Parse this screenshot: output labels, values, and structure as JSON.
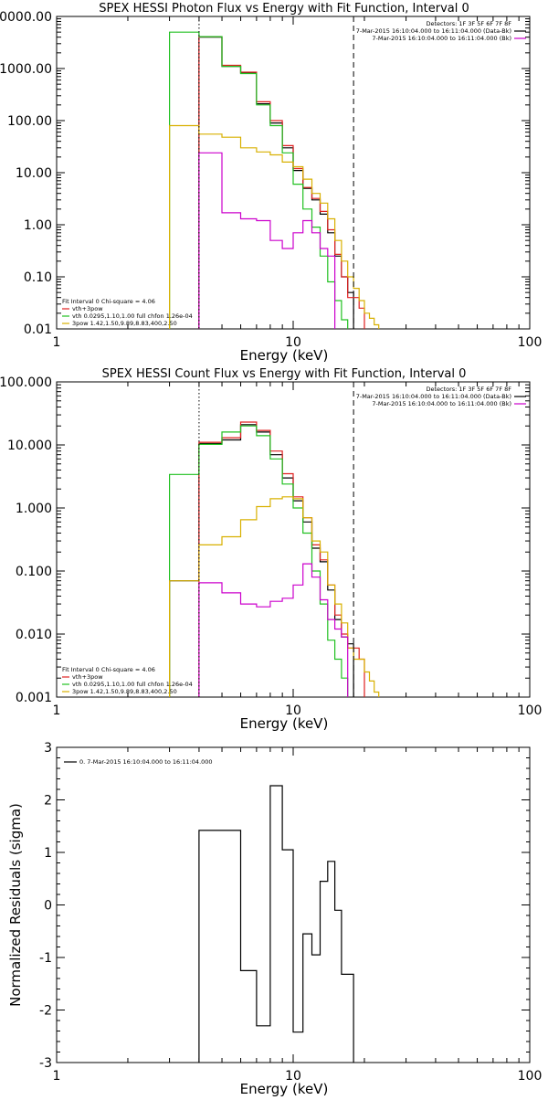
{
  "chart_data": [
    {
      "type": "line",
      "title": "SPEX HESSI Photon Flux vs Energy with Fit Function, Interval 0",
      "xlabel": "Energy (keV)",
      "ylabel": "",
      "xscale": "log",
      "yscale": "log",
      "xlim": [
        1,
        100
      ],
      "ylim": [
        0.01,
        10000
      ],
      "xticks": [
        {
          "v": 1,
          "label": "1"
        },
        {
          "v": 10,
          "label": "10"
        },
        {
          "v": 100,
          "label": "100"
        }
      ],
      "yticks": [
        {
          "v": 0.01,
          "label": "0.01"
        },
        {
          "v": 0.1,
          "label": "0.10"
        },
        {
          "v": 1,
          "label": "1.00"
        },
        {
          "v": 10,
          "label": "10.00"
        },
        {
          "v": 100,
          "label": "100.00"
        },
        {
          "v": 1000,
          "label": "1000.00"
        },
        {
          "v": 10000,
          "label": "10000.00"
        }
      ],
      "vlines": [
        {
          "x": 4.0,
          "style": "dotted",
          "color": "#000000"
        },
        {
          "x": 18.0,
          "style": "dashed",
          "color": "#000000"
        }
      ],
      "legend_top_right": [
        {
          "text": "Detectors: 1F 3F 5F 6F 7F 8F",
          "color": ""
        },
        {
          "text": "7-Mar-2015 16:10:04.000 to 16:11:04.000 (Data-Bk)",
          "color": "#000000"
        },
        {
          "text": "7-Mar-2015 16:10:04.000 to 16:11:04.000 (Bk)",
          "color": "#cc00cc"
        }
      ],
      "legend_bottom_left": [
        {
          "text": "Fit Interval 0   Chi-square = 4.06",
          "color": ""
        },
        {
          "text": "vth+3pow",
          "color": "#e02020"
        },
        {
          "text": "vth 0.0295,1.10,1.00  full chfon 1.26e-04",
          "color": "#20c020"
        },
        {
          "text": "3pow 1.42,1.50,9.89,8.83,400,2.50",
          "color": "#d8b000"
        }
      ],
      "series": [
        {
          "color": "#000000",
          "edges": [
            4.0,
            5.0,
            6.0,
            7.0,
            8.0,
            9.0,
            10.0,
            11.0,
            12.0,
            13.0,
            14.0,
            15.0,
            16.0,
            17.0,
            18.0
          ],
          "values": [
            4000,
            1100,
            820,
            210,
            90,
            30,
            11,
            5,
            3,
            1.6,
            0.7,
            0.25,
            0.1,
            0.05
          ]
        },
        {
          "color": "#e02020",
          "edges": [
            4.0,
            5.0,
            6.0,
            7.0,
            8.0,
            9.0,
            10.0,
            11.0,
            12.0,
            13.0,
            14.0,
            15.0,
            16.0,
            17.0,
            18.0,
            19.0,
            20.0
          ],
          "values": [
            4100,
            1150,
            850,
            230,
            100,
            33,
            12,
            5.2,
            3.2,
            1.8,
            0.8,
            0.27,
            0.1,
            0.04,
            0.04,
            0.025
          ]
        },
        {
          "color": "#20c020",
          "edges": [
            3.0,
            4.0,
            5.0,
            6.0,
            7.0,
            8.0,
            9.0,
            10.0,
            11.0,
            12.0,
            13.0,
            14.0,
            15.0,
            16.0,
            17.0
          ],
          "values": [
            5000,
            4100,
            1100,
            800,
            200,
            80,
            24,
            6,
            2,
            0.9,
            0.25,
            0.08,
            0.035,
            0.015
          ]
        },
        {
          "color": "#d8b000",
          "edges": [
            3.0,
            4.0,
            5.0,
            6.0,
            7.0,
            8.0,
            9.0,
            10.0,
            11.0,
            12.0,
            13.0,
            14.0,
            15.0,
            16.0,
            17.0,
            18.0,
            19.0,
            20.0,
            21.0,
            22.0,
            23.0
          ],
          "values": [
            80,
            55,
            48,
            30,
            25,
            22,
            16,
            13,
            7.5,
            4,
            2.6,
            1.3,
            0.5,
            0.2,
            0.1,
            0.06,
            0.035,
            0.02,
            0.016,
            0.012
          ]
        },
        {
          "color": "#cc00cc",
          "edges": [
            4.0,
            5.0,
            6.0,
            7.0,
            8.0,
            9.0,
            10.0,
            11.0,
            12.0,
            13.0,
            14.0,
            15.0
          ],
          "values": [
            24,
            1.7,
            1.3,
            1.2,
            0.5,
            0.35,
            0.7,
            1.2,
            0.7,
            0.35,
            0.25
          ]
        }
      ]
    },
    {
      "type": "line",
      "title": "SPEX HESSI Count Flux vs Energy with Fit Function, Interval 0",
      "xlabel": "Energy (keV)",
      "ylabel": "",
      "xscale": "log",
      "yscale": "log",
      "xlim": [
        1,
        100
      ],
      "ylim": [
        0.001,
        100
      ],
      "xticks": [
        {
          "v": 1,
          "label": "1"
        },
        {
          "v": 10,
          "label": "10"
        },
        {
          "v": 100,
          "label": "100"
        }
      ],
      "yticks": [
        {
          "v": 0.001,
          "label": "0.001"
        },
        {
          "v": 0.01,
          "label": "0.010"
        },
        {
          "v": 0.1,
          "label": "0.100"
        },
        {
          "v": 1,
          "label": "1.000"
        },
        {
          "v": 10,
          "label": "10.000"
        },
        {
          "v": 100,
          "label": "100.000"
        }
      ],
      "vlines": [
        {
          "x": 4.0,
          "style": "dotted",
          "color": "#000000"
        },
        {
          "x": 18.0,
          "style": "dashed",
          "color": "#000000"
        }
      ],
      "legend_top_right": [
        {
          "text": "Detectors: 1F 3F 5F 6F 7F 8F",
          "color": ""
        },
        {
          "text": "7-Mar-2015 16:10:04.000 to 16:11:04.000 (Data-Bk)",
          "color": "#000000"
        },
        {
          "text": "7-Mar-2015 16:10:04.000 to 16:11:04.000 (Bk)",
          "color": "#cc00cc"
        }
      ],
      "legend_bottom_left": [
        {
          "text": "Fit Interval 0   Chi-square = 4.06",
          "color": ""
        },
        {
          "text": "vth+3pow",
          "color": "#e02020"
        },
        {
          "text": "vth 0.0295,1.10,1.00  full chfon 1.26e-04",
          "color": "#20c020"
        },
        {
          "text": "3pow 1.42,1.50,9.89,8.83,400,2.50",
          "color": "#d8b000"
        }
      ],
      "series": [
        {
          "color": "#000000",
          "edges": [
            3.0,
            4.0,
            5.0,
            6.0,
            7.0,
            8.0,
            9.0,
            10.0,
            11.0,
            12.0,
            13.0,
            14.0,
            15.0,
            16.0,
            17.0,
            18.0
          ],
          "values": [
            0.07,
            10.5,
            12,
            21,
            16,
            7,
            3,
            1.3,
            0.6,
            0.23,
            0.14,
            0.05,
            0.017,
            0.009,
            0.007
          ]
        },
        {
          "color": "#e02020",
          "edges": [
            4.0,
            5.0,
            6.0,
            7.0,
            8.0,
            9.0,
            10.0,
            11.0,
            12.0,
            13.0,
            14.0,
            15.0,
            16.0,
            17.0,
            18.0,
            19.0,
            20.0
          ],
          "values": [
            11,
            13,
            23,
            17,
            8,
            3.5,
            1.5,
            0.7,
            0.26,
            0.15,
            0.06,
            0.02,
            0.01,
            0.006,
            0.006,
            0.004
          ]
        },
        {
          "color": "#20c020",
          "edges": [
            3.0,
            4.0,
            5.0,
            6.0,
            7.0,
            8.0,
            9.0,
            10.0,
            11.0,
            12.0,
            13.0,
            14.0,
            15.0,
            16.0,
            17.0
          ],
          "values": [
            3.4,
            10.2,
            16,
            20,
            14,
            6,
            2.4,
            1,
            0.4,
            0.1,
            0.03,
            0.008,
            0.004,
            0.002
          ]
        },
        {
          "color": "#d8b000",
          "edges": [
            3.0,
            4.0,
            5.0,
            6.0,
            7.0,
            8.0,
            9.0,
            10.0,
            11.0,
            12.0,
            13.0,
            14.0,
            15.0,
            16.0,
            17.0,
            18.0,
            19.0,
            20.0,
            21.0,
            22.0,
            23.0
          ],
          "values": [
            0.07,
            0.26,
            0.35,
            0.65,
            1.05,
            1.4,
            1.5,
            1.4,
            0.7,
            0.3,
            0.2,
            0.06,
            0.03,
            0.015,
            0.006,
            0.004,
            0.004,
            0.0025,
            0.0018,
            0.0012
          ]
        },
        {
          "color": "#cc00cc",
          "edges": [
            4.0,
            5.0,
            6.0,
            7.0,
            8.0,
            9.0,
            10.0,
            11.0,
            12.0,
            13.0,
            14.0,
            15.0,
            16.0,
            17.0
          ],
          "values": [
            0.065,
            0.045,
            0.03,
            0.027,
            0.033,
            0.037,
            0.06,
            0.13,
            0.08,
            0.035,
            0.017,
            0.012,
            0.009
          ]
        }
      ]
    },
    {
      "type": "line",
      "title": "",
      "xlabel": "Energy (keV)",
      "ylabel": "Normalized Residuals (sigma)",
      "xscale": "log",
      "yscale": "linear",
      "xlim": [
        1,
        100
      ],
      "ylim": [
        -3,
        3
      ],
      "xticks": [
        {
          "v": 1,
          "label": "1"
        },
        {
          "v": 10,
          "label": "10"
        },
        {
          "v": 100,
          "label": "100"
        }
      ],
      "yticks": [
        {
          "v": -3,
          "label": "-3"
        },
        {
          "v": -2,
          "label": "-2"
        },
        {
          "v": -1,
          "label": "-1"
        },
        {
          "v": 0,
          "label": "0"
        },
        {
          "v": 1,
          "label": "1"
        },
        {
          "v": 2,
          "label": "2"
        },
        {
          "v": 3,
          "label": "3"
        }
      ],
      "vlines": [],
      "legend_top_right": [],
      "legend_top_left": [
        {
          "text": "0. 7-Mar-2015 16:10:04.000 to 16:11:04.000",
          "color": "#000000"
        }
      ],
      "legend_bottom_left": [],
      "series": [
        {
          "color": "#000000",
          "edges": [
            4.0,
            5.0,
            6.0,
            7.0,
            8.0,
            9.0,
            10.0,
            11.0,
            12.0,
            13.0,
            14.0,
            15.0,
            16.0,
            17.0,
            18.0
          ],
          "values": [
            1.42,
            1.42,
            -1.25,
            -2.3,
            2.27,
            1.05,
            -2.42,
            -0.55,
            -0.95,
            0.45,
            0.83,
            -0.1,
            -1.32,
            -1.32
          ],
          "drop_to_bottom": true
        }
      ]
    }
  ]
}
